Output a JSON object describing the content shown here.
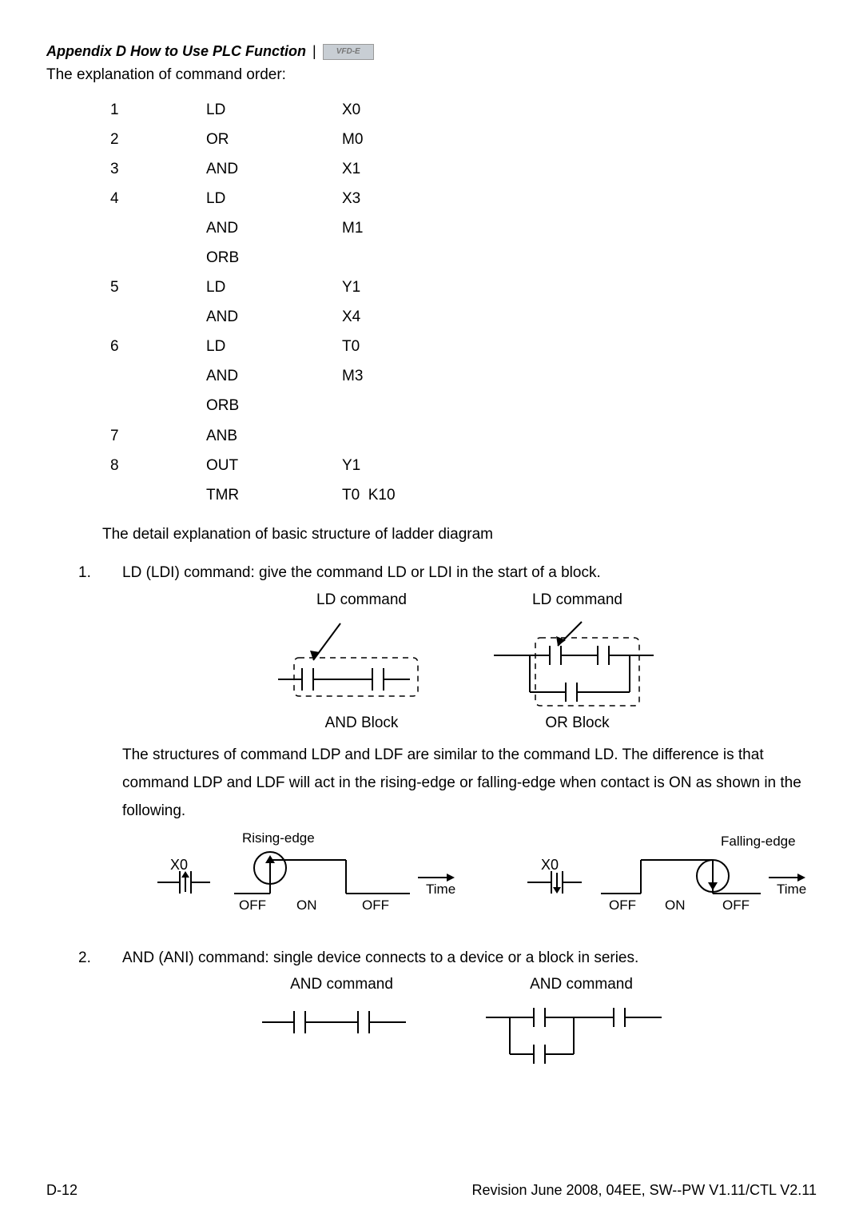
{
  "header": {
    "title": "Appendix D How to Use PLC Function",
    "logo_text": "VFD-E"
  },
  "intro": "The explanation of command order:",
  "commands": [
    {
      "n": "1",
      "op": "LD",
      "arg": "X0"
    },
    {
      "n": "2",
      "op": "OR",
      "arg": "M0"
    },
    {
      "n": "3",
      "op": "AND",
      "arg": "X1"
    },
    {
      "n": "4",
      "op": "LD",
      "arg": "X3"
    },
    {
      "n": "",
      "op": "AND",
      "arg": "M1"
    },
    {
      "n": "",
      "op": "ORB",
      "arg": ""
    },
    {
      "n": "5",
      "op": "LD",
      "arg": "Y1"
    },
    {
      "n": "",
      "op": "AND",
      "arg": "X4"
    },
    {
      "n": "6",
      "op": "LD",
      "arg": "T0"
    },
    {
      "n": "",
      "op": "AND",
      "arg": "M3"
    },
    {
      "n": "",
      "op": "ORB",
      "arg": ""
    },
    {
      "n": "7",
      "op": "ANB",
      "arg": ""
    },
    {
      "n": "8",
      "op": "OUT",
      "arg": "Y1"
    },
    {
      "n": "",
      "op": "TMR",
      "arg": "T0  K10"
    }
  ],
  "detail_intro": "The detail explanation of basic structure of ladder diagram",
  "sections": {
    "s1": {
      "num": "1.",
      "lead": "LD (LDI) command: give the command LD or LDI in the start of a block.",
      "ld_label": "LD command",
      "and_block": "AND Block",
      "or_block": "OR Block",
      "para": "The structures of command LDP and LDF are similar to the command LD. The difference is that command LDP and LDF will act in the rising-edge or falling-edge when contact is ON as shown in the following.",
      "rising": "Rising-edge",
      "falling": "Falling-edge",
      "x0": "X0",
      "time": "Time",
      "on": "ON",
      "off": "OFF"
    },
    "s2": {
      "num": "2.",
      "lead": "AND (ANI) command: single device connects to a device or a block in series.",
      "and_label": "AND command"
    }
  },
  "footer": {
    "left": "D-12",
    "right": "Revision June 2008, 04EE, SW--PW V1.11/CTL V2.11"
  },
  "colors": {
    "text": "#000000",
    "bg": "#ffffff",
    "dash": "#000000"
  }
}
